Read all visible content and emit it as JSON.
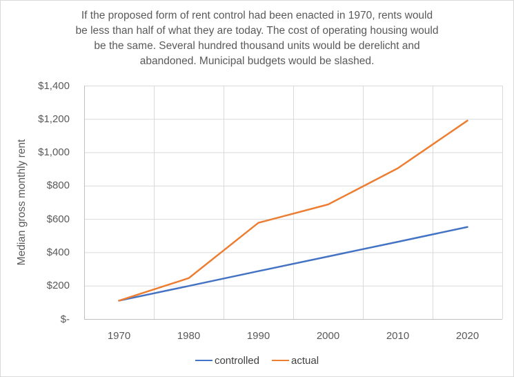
{
  "chart": {
    "frame_border_color": "#D9D9D9",
    "background": "#FFFFFF"
  },
  "chart_data": {
    "type": "line",
    "title": "If the proposed form of rent control had been enacted in 1970, rents would be less than half of what they are today. The cost of operating housing would be the same. Several hundred thousand units would be derelicht and abandoned. Municipal budgets would be slashed.",
    "title_lines": [
      "If the proposed form of rent control had been enacted in 1970, rents would",
      "be less than half of what they are today. The cost of operating housing would",
      "be the same. Several hundred thousand units would be derelicht and",
      "abandoned. Municipal budgets would be slashed."
    ],
    "xlabel": "",
    "ylabel": "Median gross monthly rent",
    "categories": [
      "1970",
      "1980",
      "1990",
      "2000",
      "2010",
      "2020"
    ],
    "series": [
      {
        "name": "controlled",
        "color": "#4472C4",
        "values": [
          110,
          198,
          287,
          375,
          463,
          552
        ]
      },
      {
        "name": "actual",
        "color": "#ED7D31",
        "values": [
          110,
          245,
          577,
          687,
          904,
          1190
        ]
      }
    ],
    "ylim": [
      0,
      1400
    ],
    "ytick_step": 200,
    "ytick_labels_bottom_up": [
      "$-",
      "$200",
      "$400",
      "$600",
      "$800",
      "$1,000",
      "$1,200",
      "$1,400"
    ],
    "grid": true,
    "legend_position": "bottom",
    "colors": {
      "gridline": "#D9D9D9",
      "axis_line": "#BFBFBF",
      "tick_text": "#595959",
      "title_text": "#595959"
    }
  }
}
